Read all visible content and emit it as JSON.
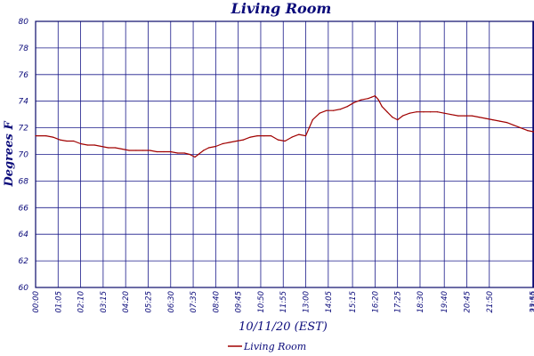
{
  "chart_data": {
    "type": "line",
    "title": "Living Room",
    "xlabel": "10/11/20 (EST)",
    "ylabel": "Degrees F",
    "ylim": [
      60,
      80
    ],
    "yticks": [
      "60",
      "62",
      "64",
      "66",
      "68",
      "70",
      "72",
      "74",
      "76",
      "78",
      "80"
    ],
    "xlim": [
      "00:00",
      "23:59"
    ],
    "xticks": [
      "00:00",
      "01:05",
      "02:10",
      "03:15",
      "04:20",
      "05:25",
      "06:30",
      "07:35",
      "08:40",
      "09:45",
      "10:50",
      "11:55",
      "13:00",
      "14:05",
      "15:15",
      "16:20",
      "17:25",
      "18:30",
      "19:40",
      "20:45",
      "21:50",
      "23:55",
      "23:59"
    ],
    "grid": true,
    "legend_position": "bottom-center",
    "series": [
      {
        "name": "Living Room",
        "color": "#a00000",
        "x": [
          "00:00",
          "00:30",
          "00:50",
          "01:10",
          "01:30",
          "01:50",
          "02:10",
          "02:30",
          "02:50",
          "03:10",
          "03:30",
          "03:50",
          "04:10",
          "04:30",
          "04:50",
          "05:10",
          "05:30",
          "05:50",
          "06:10",
          "06:30",
          "06:50",
          "07:10",
          "07:25",
          "07:40",
          "07:50",
          "08:05",
          "08:20",
          "08:40",
          "09:00",
          "09:20",
          "09:40",
          "10:00",
          "10:20",
          "10:40",
          "11:00",
          "11:20",
          "11:40",
          "12:00",
          "12:20",
          "12:40",
          "13:00",
          "13:10",
          "13:20",
          "13:40",
          "14:00",
          "14:20",
          "14:40",
          "15:00",
          "15:20",
          "15:40",
          "16:00",
          "16:10",
          "16:20",
          "16:30",
          "16:40",
          "16:55",
          "17:10",
          "17:25",
          "17:40",
          "18:00",
          "18:20",
          "18:40",
          "19:00",
          "19:20",
          "19:40",
          "20:00",
          "20:20",
          "20:40",
          "21:00",
          "21:20",
          "21:40",
          "22:00",
          "22:20",
          "22:40",
          "23:00",
          "23:20",
          "23:40",
          "23:59"
        ],
        "y": [
          71.4,
          71.4,
          71.3,
          71.1,
          71.0,
          71.0,
          70.8,
          70.7,
          70.7,
          70.6,
          70.5,
          70.5,
          70.4,
          70.3,
          70.3,
          70.3,
          70.3,
          70.2,
          70.2,
          70.2,
          70.1,
          70.1,
          70.0,
          69.8,
          70.0,
          70.3,
          70.5,
          70.6,
          70.8,
          70.9,
          71.0,
          71.1,
          71.3,
          71.4,
          71.4,
          71.4,
          71.1,
          71.0,
          71.3,
          71.5,
          71.4,
          72.0,
          72.6,
          73.1,
          73.3,
          73.3,
          73.4,
          73.6,
          73.9,
          74.1,
          74.2,
          74.3,
          74.4,
          74.1,
          73.6,
          73.2,
          72.8,
          72.6,
          72.9,
          73.1,
          73.2,
          73.2,
          73.2,
          73.2,
          73.1,
          73.0,
          72.9,
          72.9,
          72.9,
          72.8,
          72.7,
          72.6,
          72.5,
          72.4,
          72.2,
          72.0,
          71.8,
          71.7
        ]
      }
    ]
  }
}
